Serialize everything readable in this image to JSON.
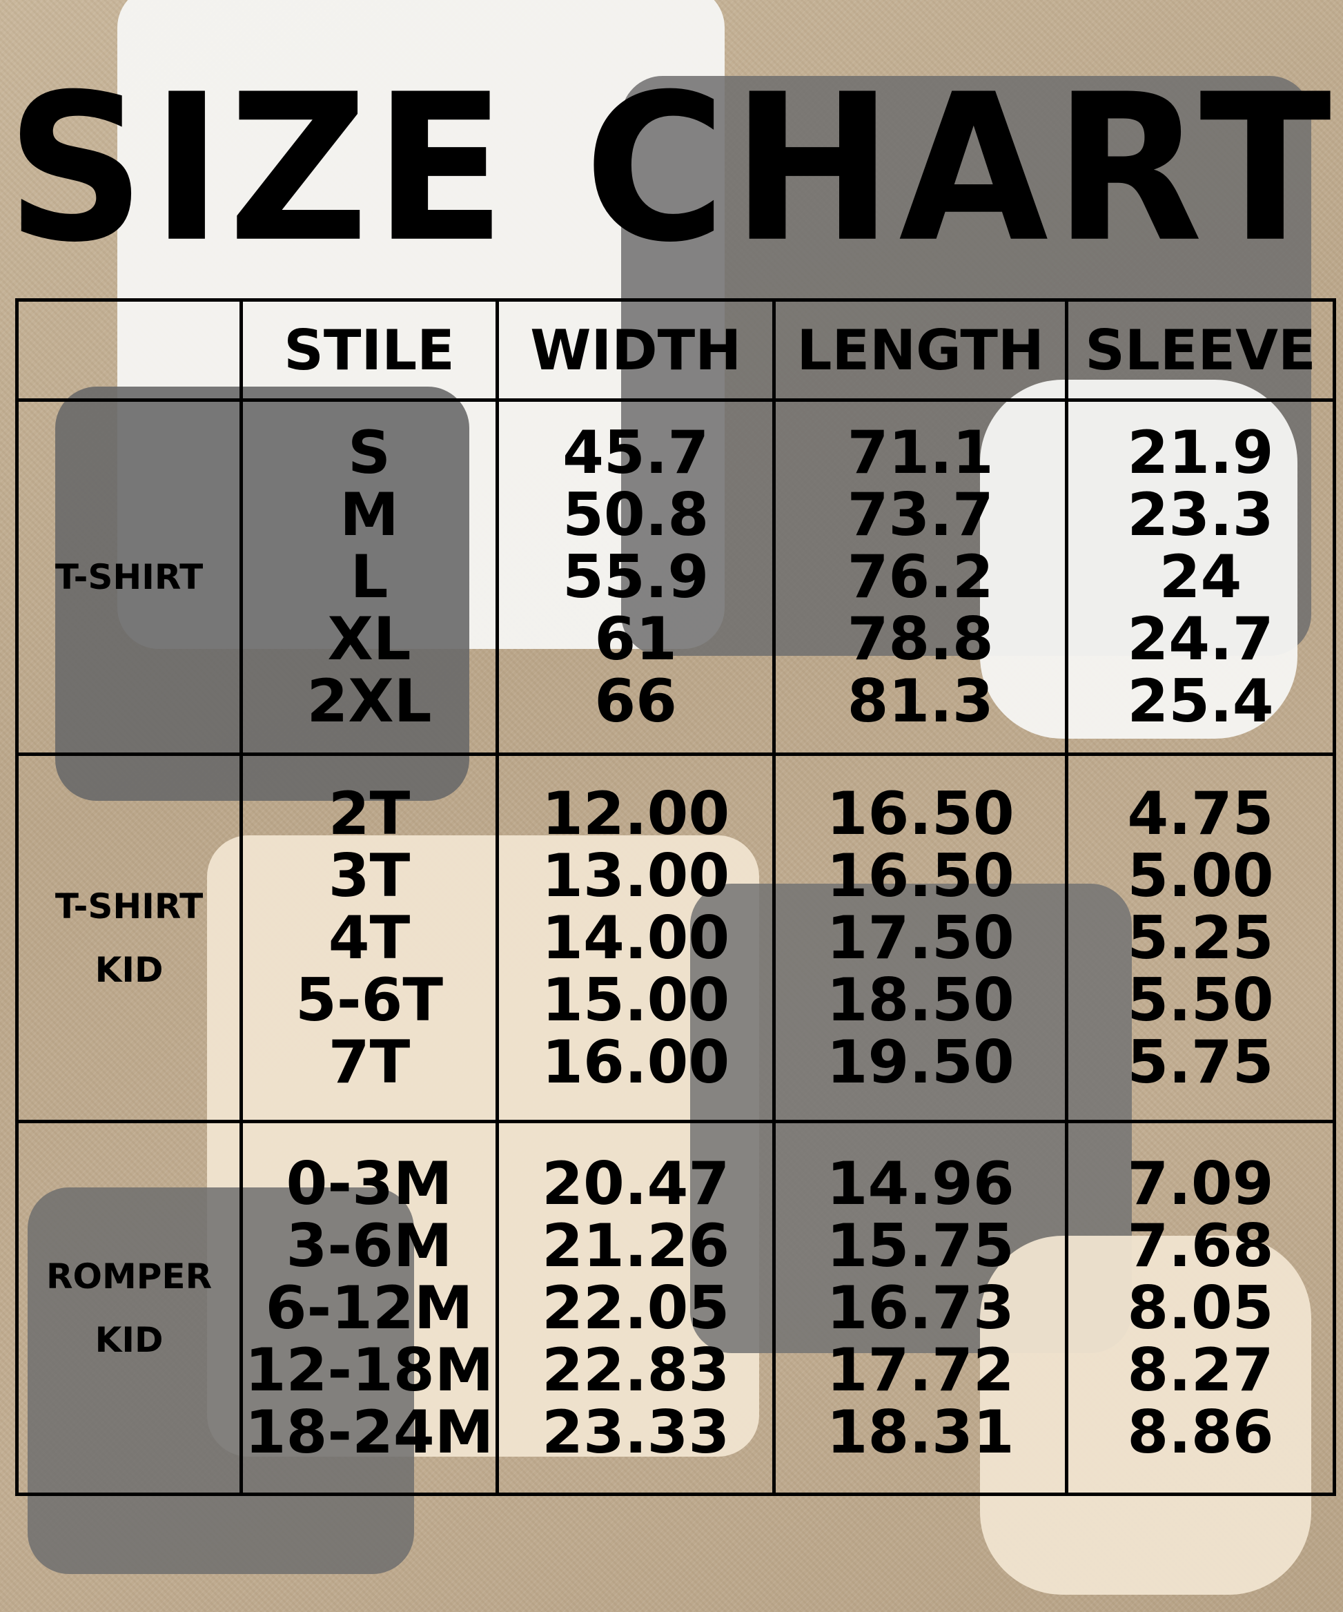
{
  "title": "SIZE CHART",
  "chart_data": {
    "type": "table",
    "columns": [
      "",
      "STILE",
      "WIDTH",
      "LENGTH",
      "SLEEVE"
    ],
    "groups": [
      {
        "label": "T-SHIRT",
        "sizes": [
          "S",
          "M",
          "L",
          "XL",
          "2XL"
        ],
        "width": [
          "45.7",
          "50.8",
          "55.9",
          "61",
          "66"
        ],
        "length": [
          "71.1",
          "73.7",
          "76.2",
          "78.8",
          "81.3"
        ],
        "sleeve": [
          "21.9",
          "23.3",
          "24",
          "24.7",
          "25.4"
        ]
      },
      {
        "label": "T-SHIRT KID",
        "sizes": [
          "2T",
          "3T",
          "4T",
          "5-6T",
          "7T"
        ],
        "width": [
          "12.00",
          "13.00",
          "14.00",
          "15.00",
          "16.00"
        ],
        "length": [
          "16.50",
          "16.50",
          "17.50",
          "18.50",
          "19.50"
        ],
        "sleeve": [
          "4.75",
          "5.00",
          "5.25",
          "5.50",
          "5.75"
        ]
      },
      {
        "label": "ROMPER KID",
        "sizes": [
          "0-3M",
          "3-6M",
          "6-12M",
          "12-18M",
          "18-24M"
        ],
        "width": [
          "20.47",
          "21.26",
          "22.05",
          "22.83",
          "23.33"
        ],
        "length": [
          "14.96",
          "15.75",
          "16.73",
          "17.72",
          "18.31"
        ],
        "sleeve": [
          "7.09",
          "7.68",
          "8.05",
          "8.27",
          "8.86"
        ]
      }
    ]
  },
  "colors": {
    "background": "#c2ae93",
    "text": "#000000"
  }
}
